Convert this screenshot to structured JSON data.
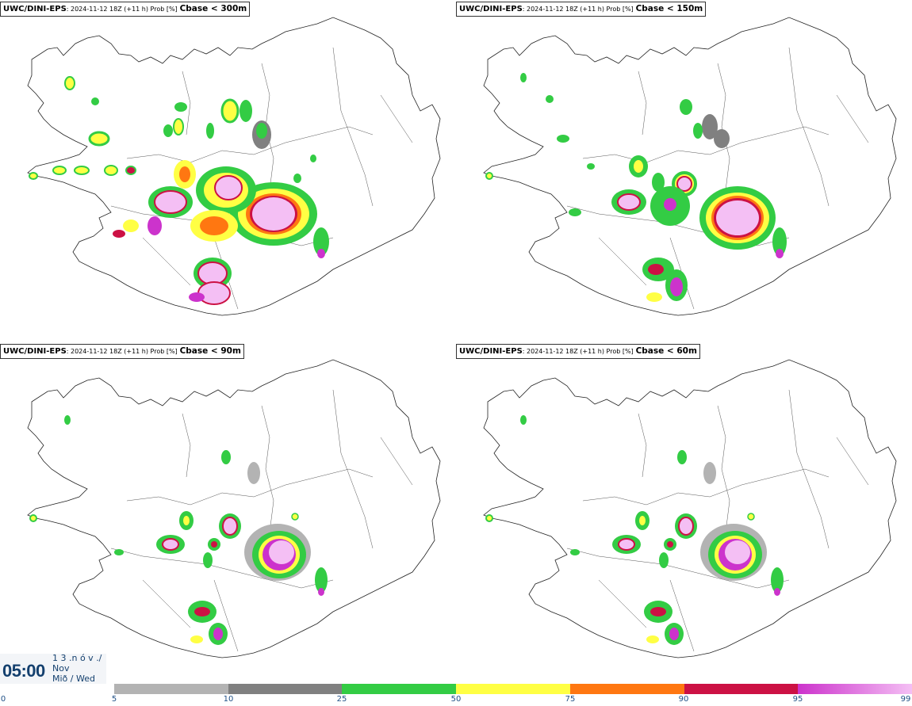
{
  "panels": [
    {
      "model": "UWC/DINI-EPS",
      "desc": ": 2024-11-12 18Z (+11 h) Prob [%]",
      "threshold": "Cbase < 300m"
    },
    {
      "model": "UWC/DINI-EPS",
      "desc": ": 2024-11-12 18Z (+11 h) Prob [%]",
      "threshold": "Cbase < 150m"
    },
    {
      "model": "UWC/DINI-EPS",
      "desc": ": 2024-11-12 18Z (+11 h) Prob [%]",
      "threshold": "Cbase < 90m"
    },
    {
      "model": "UWC/DINI-EPS",
      "desc": ": 2024-11-12 18Z (+11 h) Prob [%]",
      "threshold": "Cbase < 60m"
    }
  ],
  "time": {
    "clock": "05:00",
    "date_line": "1 3 .n ó v ./",
    "month": "Nov",
    "weekday": "Mið / Wed"
  },
  "legend": {
    "ticks": [
      "0",
      "5",
      "10",
      "25",
      "50",
      "75",
      "90",
      "95",
      "99"
    ],
    "colors": {
      "gray": "#b3b3b3",
      "darkgray": "#808080",
      "green": "#33cc44",
      "yellow": "#ffff44",
      "orange": "#ff7711",
      "red": "#cc1144",
      "purple": "#cc33cc",
      "pink": "#f4bff4"
    }
  }
}
